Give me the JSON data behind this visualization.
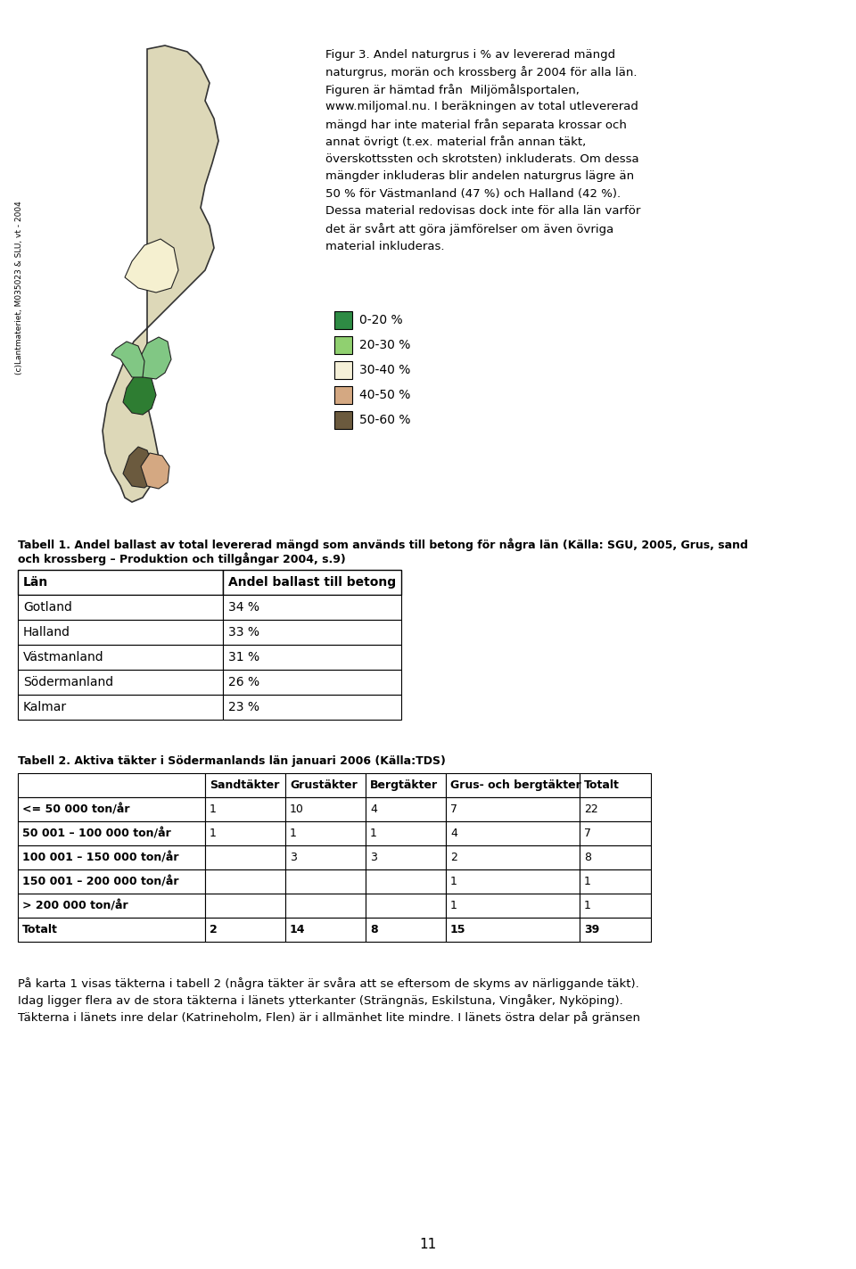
{
  "page_background": "#ffffff",
  "figsize": [
    9.6,
    14.23
  ],
  "dpi": 100,
  "fig_caption_lines": [
    "Figur 3. Andel naturgrus i % av levererad mängd",
    "naturgrus, morän och krossberg år 2004 för alla län.",
    "Figuren är hämtad från  Miljömålsportalen,",
    "www.miljomal.nu. I beräkningen av total utlevererad",
    "mängd har inte material från separata krossar och",
    "annat övrigt (t.ex. material från annan täkt,",
    "överskottssten och skrotsten) inkluderats. Om dessa",
    "mängder inkluderas blir andelen naturgrus lägre än",
    "50 % för Västmanland (47 %) och Halland (42 %).",
    "Dessa material redovisas dock inte för alla län varför",
    "det är svårt att göra jämförelser om även övriga",
    "material inkluderas."
  ],
  "legend_items": [
    {
      "color": "#2e8b44",
      "label": "0-20 %"
    },
    {
      "color": "#90d070",
      "label": "20-30 %"
    },
    {
      "color": "#f5f0d8",
      "label": "30-40 %"
    },
    {
      "color": "#d4a882",
      "label": "40-50 %"
    },
    {
      "color": "#6b5a3e",
      "label": "50-60 %"
    }
  ],
  "copyright_text": "(c)Lantmateriet, M035023 & SLU, vt - 2004",
  "table1_caption_lines": [
    "Tabell 1. Andel ballast av total levererad mängd som används till betong för några län (Källa: SGU, 2005, Grus, sand",
    "och krossberg – Produktion och tillgångar 2004, s.9)"
  ],
  "table1_headers": [
    "Län",
    "Andel ballast till betong"
  ],
  "table1_data": [
    [
      "Gotland",
      "34 %"
    ],
    [
      "Halland",
      "33 %"
    ],
    [
      "Västmanland",
      "31 %"
    ],
    [
      "Södermanland",
      "26 %"
    ],
    [
      "Kalmar",
      "23 %"
    ]
  ],
  "table2_caption": "Tabell 2. Aktiva täkter i Södermanlands län januari 2006 (Källa:TDS)",
  "table2_headers": [
    "",
    "Sandtäkter",
    "Grustäkter",
    "Bergtäkter",
    "Grus- och bergtäkter",
    "Totalt"
  ],
  "table2_data": [
    [
      "<= 50 000 ton/år",
      "1",
      "10",
      "4",
      "7",
      "22"
    ],
    [
      "50 001 – 100 000 ton/år",
      "1",
      "1",
      "1",
      "4",
      "7"
    ],
    [
      "100 001 – 150 000 ton/år",
      "",
      "3",
      "3",
      "2",
      "8"
    ],
    [
      "150 001 – 200 000 ton/år",
      "",
      "",
      "",
      "1",
      "1"
    ],
    [
      "> 200 000 ton/år",
      "",
      "",
      "",
      "1",
      "1"
    ],
    [
      "Totalt",
      "2",
      "14",
      "8",
      "15",
      "39"
    ]
  ],
  "bottom_text_lines": [
    "På karta 1 visas täkterna i tabell 2 (några täkter är svåra att se eftersom de skyms av närliggande täkt).",
    "Idag ligger flera av de stora täkterna i länets ytterkanter (Strängnäs, Eskilstuna, Vingåker, Nyköping).",
    "Täkterna i länets inre delar (Katrineholm, Flen) är i allmänhet lite mindre. I länets östra delar på gränsen"
  ],
  "page_number": "11"
}
